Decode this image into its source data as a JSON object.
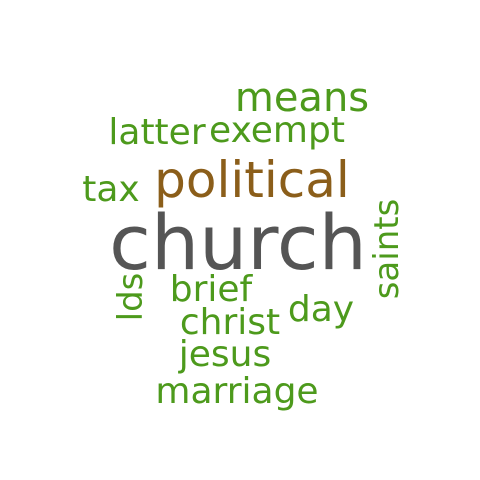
{
  "words": {
    "church": "church",
    "political": "political",
    "means": "means",
    "latter": "latter",
    "exempt": "exempt",
    "tax": "tax",
    "saints": "saints",
    "lds": "lds",
    "brief": "brief",
    "day": "day",
    "christ": "christ",
    "jesus": "jesus",
    "marriage": "marriage"
  },
  "colors": {
    "green": "#4d9a1c",
    "brown": "#8b5e1a",
    "gray": "#555555",
    "background": "#ffffff"
  }
}
